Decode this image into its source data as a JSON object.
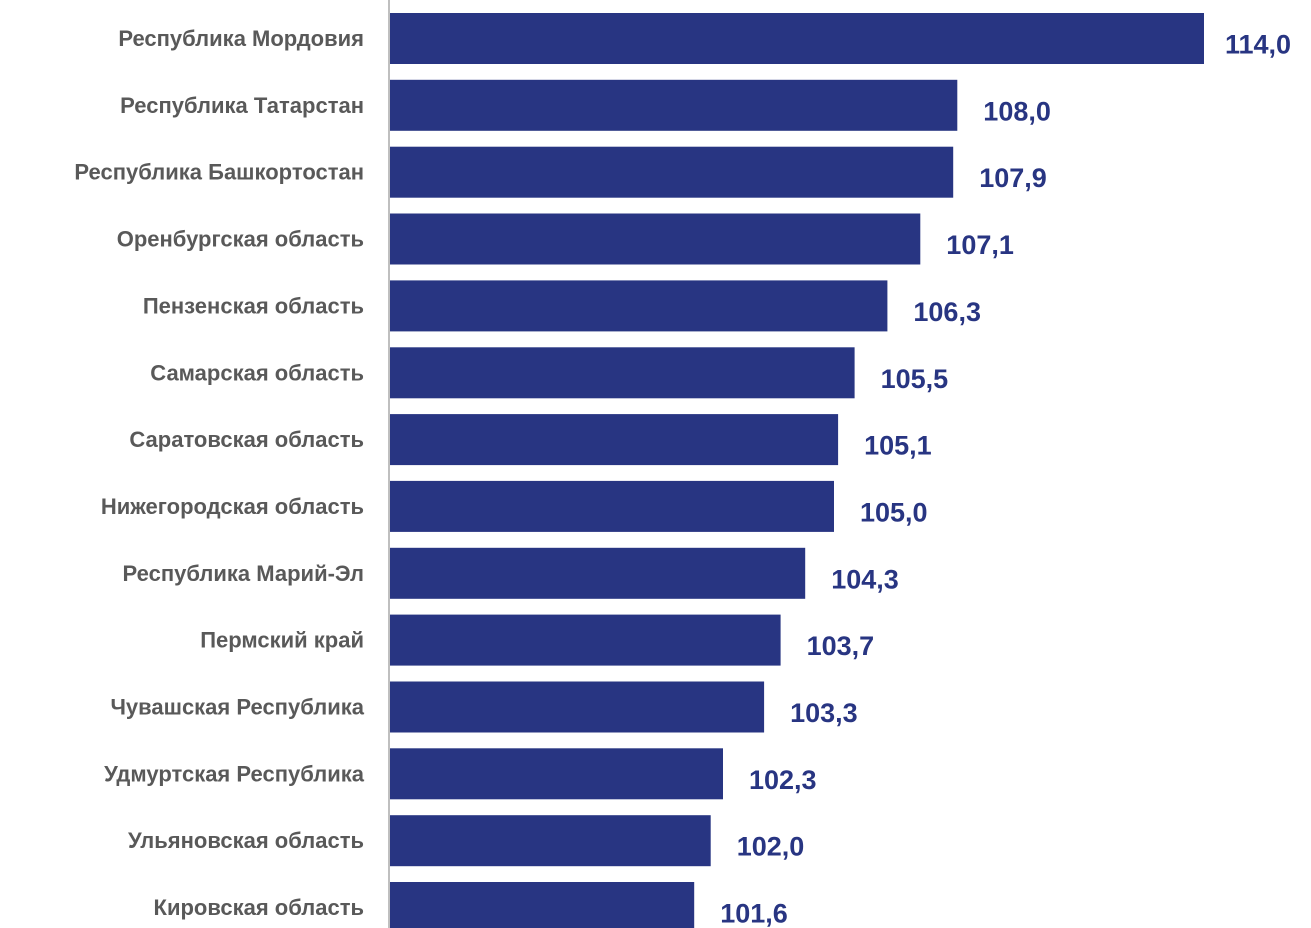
{
  "chart_data": {
    "type": "bar",
    "orientation": "horizontal",
    "categories": [
      "Республика Мордовия",
      "Республика Татарстан",
      "Республика Башкортостан",
      "Оренбургская область",
      "Пензенская область",
      "Самарская область",
      "Саратовская область",
      "Нижегородская область",
      "Республика Марий-Эл",
      "Пермский край",
      "Чувашская Республика",
      "Удмуртская Республика",
      "Ульяновская область",
      "Кировская область"
    ],
    "values": [
      114.0,
      108.0,
      107.9,
      107.1,
      106.3,
      105.5,
      105.1,
      105.0,
      104.3,
      103.7,
      103.3,
      102.3,
      102.0,
      101.6
    ],
    "value_labels": [
      "114,0",
      "108,0",
      "107,9",
      "107,1",
      "106,3",
      "105,5",
      "105,1",
      "105,0",
      "104,3",
      "103,7",
      "103,3",
      "102,3",
      "102,0",
      "101,6"
    ],
    "axis_origin": 94.2,
    "xlim": [
      94.2,
      114.0
    ],
    "grid": false,
    "legend": "none",
    "colors": {
      "bar": "#283582",
      "value_label": "#283582",
      "category_label": "#595959",
      "axis": "#bfbfbf"
    }
  }
}
